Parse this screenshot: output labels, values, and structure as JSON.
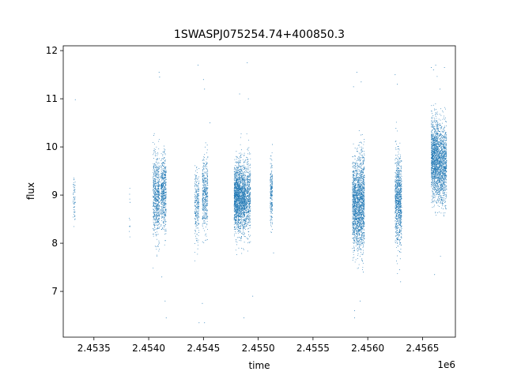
{
  "chart_data": {
    "type": "scatter",
    "title": "1SWASPJ075254.74+400850.3",
    "xlabel": "time",
    "ylabel": "flux",
    "x_offset_label": "1e6",
    "xlim": [
      2453220,
      2456800
    ],
    "ylim": [
      6.05,
      12.1
    ],
    "x_ticks": [
      2453500,
      2454000,
      2454500,
      2455000,
      2455500,
      2456000,
      2456500
    ],
    "x_tick_labels": [
      "2.4535",
      "2.4540",
      "2.4545",
      "2.4550",
      "2.4555",
      "2.4560",
      "2.4565"
    ],
    "y_ticks": [
      7,
      8,
      9,
      10,
      11,
      12
    ],
    "y_tick_labels": [
      "7",
      "8",
      "9",
      "10",
      "11",
      "12"
    ],
    "grid": false,
    "legend": "none",
    "marker_color": "#1f77b4",
    "series": [
      {
        "clusters": [
          {
            "t_start": 2453310,
            "t_end": 2453330,
            "flux_mean": 8.95,
            "flux_sd": 0.25,
            "n": 60
          },
          {
            "t_start": 2453820,
            "t_end": 2453830,
            "flux_mean": 8.6,
            "flux_sd": 0.3,
            "n": 10
          },
          {
            "t_start": 2454040,
            "t_end": 2454100,
            "flux_mean": 8.95,
            "flux_sd": 0.42,
            "n": 650
          },
          {
            "t_start": 2454110,
            "t_end": 2454160,
            "flux_mean": 9.05,
            "flux_sd": 0.38,
            "n": 550
          },
          {
            "t_start": 2454420,
            "t_end": 2454460,
            "flux_mean": 8.8,
            "flux_sd": 0.35,
            "n": 260
          },
          {
            "t_start": 2454490,
            "t_end": 2454540,
            "flux_mean": 9.0,
            "flux_sd": 0.4,
            "n": 420
          },
          {
            "t_start": 2454780,
            "t_end": 2454880,
            "flux_mean": 8.95,
            "flux_sd": 0.35,
            "n": 1800
          },
          {
            "t_start": 2454880,
            "t_end": 2454930,
            "flux_mean": 8.95,
            "flux_sd": 0.4,
            "n": 500
          },
          {
            "t_start": 2455110,
            "t_end": 2455130,
            "flux_mean": 9.05,
            "flux_sd": 0.3,
            "n": 220
          },
          {
            "t_start": 2455860,
            "t_end": 2455920,
            "flux_mean": 8.8,
            "flux_sd": 0.45,
            "n": 1000
          },
          {
            "t_start": 2455920,
            "t_end": 2455970,
            "flux_mean": 8.85,
            "flux_sd": 0.5,
            "n": 900
          },
          {
            "t_start": 2456250,
            "t_end": 2456310,
            "flux_mean": 8.9,
            "flux_sd": 0.45,
            "n": 900
          },
          {
            "t_start": 2456580,
            "t_end": 2456640,
            "flux_mean": 9.75,
            "flux_sd": 0.4,
            "n": 1100
          },
          {
            "t_start": 2456640,
            "t_end": 2456720,
            "flux_mean": 9.65,
            "flux_sd": 0.4,
            "n": 1100
          }
        ],
        "outliers": [
          [
            2453330,
            10.98
          ],
          [
            2453830,
            8.85
          ],
          [
            2454095,
            11.55
          ],
          [
            2454100,
            11.45
          ],
          [
            2454160,
            6.45
          ],
          [
            2454150,
            6.8
          ],
          [
            2454120,
            7.3
          ],
          [
            2454450,
            11.7
          ],
          [
            2454500,
            11.4
          ],
          [
            2454510,
            11.2
          ],
          [
            2454490,
            6.75
          ],
          [
            2454460,
            6.35
          ],
          [
            2454510,
            6.35
          ],
          [
            2454560,
            10.5
          ],
          [
            2454830,
            11.1
          ],
          [
            2454900,
            11.75
          ],
          [
            2454870,
            6.45
          ],
          [
            2454950,
            6.9
          ],
          [
            2454910,
            11.0
          ],
          [
            2455130,
            10.05
          ],
          [
            2455140,
            7.8
          ],
          [
            2455870,
            11.25
          ],
          [
            2455880,
            6.45
          ],
          [
            2455880,
            6.6
          ],
          [
            2455900,
            11.55
          ],
          [
            2455940,
            11.35
          ],
          [
            2455930,
            6.8
          ],
          [
            2455960,
            7.4
          ],
          [
            2456250,
            11.5
          ],
          [
            2456270,
            11.3
          ],
          [
            2456300,
            7.2
          ],
          [
            2456290,
            7.45
          ],
          [
            2456580,
            11.65
          ],
          [
            2456600,
            11.6
          ],
          [
            2456620,
            11.7
          ],
          [
            2456700,
            11.65
          ],
          [
            2456610,
            7.35
          ],
          [
            2456660,
            11.2
          ]
        ]
      }
    ]
  }
}
